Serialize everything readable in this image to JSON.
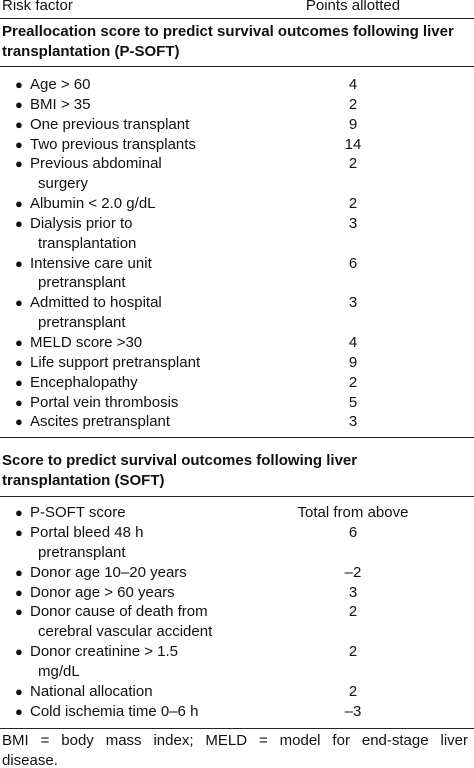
{
  "header": {
    "factor": "Risk factor",
    "points": "Points allotted"
  },
  "sections": [
    {
      "title": [
        "Preallocation score to predict survival outcomes following liver",
        "transplantation (P-SOFT)"
      ],
      "rows": [
        {
          "factor": [
            "Age > 60"
          ],
          "points": "4"
        },
        {
          "factor": [
            "BMI > 35"
          ],
          "points": "2"
        },
        {
          "factor": [
            "One previous transplant"
          ],
          "points": "9"
        },
        {
          "factor": [
            "Two previous transplants"
          ],
          "points": "14"
        },
        {
          "factor": [
            "Previous abdominal",
            "surgery"
          ],
          "points": "2"
        },
        {
          "factor": [
            "Albumin < 2.0 g/dL"
          ],
          "points": "2"
        },
        {
          "factor": [
            "Dialysis prior to",
            "transplantation"
          ],
          "points": "3"
        },
        {
          "factor": [
            "Intensive care unit",
            "pretransplant"
          ],
          "points": "6"
        },
        {
          "factor": [
            "Admitted to hospital",
            "pretransplant"
          ],
          "points": "3"
        },
        {
          "factor": [
            "MELD score >30"
          ],
          "points": "4"
        },
        {
          "factor": [
            "Life support pretransplant"
          ],
          "points": "9"
        },
        {
          "factor": [
            "Encephalopathy"
          ],
          "points": "2"
        },
        {
          "factor": [
            "Portal vein thrombosis"
          ],
          "points": "5"
        },
        {
          "factor": [
            "Ascites pretransplant"
          ],
          "points": "3"
        }
      ]
    },
    {
      "title": [
        "Score to predict survival outcomes following liver",
        "transplantation (SOFT)"
      ],
      "rows": [
        {
          "factor": [
            "P-SOFT score"
          ],
          "points": "Total from above"
        },
        {
          "factor": [
            "Portal bleed 48 h",
            "pretransplant"
          ],
          "points": "6"
        },
        {
          "factor": [
            "Donor age 10–20 years"
          ],
          "points": "–2"
        },
        {
          "factor": [
            "Donor age > 60 years"
          ],
          "points": "3"
        },
        {
          "factor": [
            "Donor cause of death from",
            "cerebral vascular accident"
          ],
          "points": "2"
        },
        {
          "factor": [
            "Donor creatinine > 1.5",
            "mg/dL"
          ],
          "points": "2"
        },
        {
          "factor": [
            "National allocation"
          ],
          "points": "2"
        },
        {
          "factor": [
            "Cold ischemia time 0–6 h"
          ],
          "points": "–3"
        }
      ]
    }
  ],
  "footnote": [
    "BMI = body mass index; MELD = model for end-stage liver",
    "disease."
  ]
}
